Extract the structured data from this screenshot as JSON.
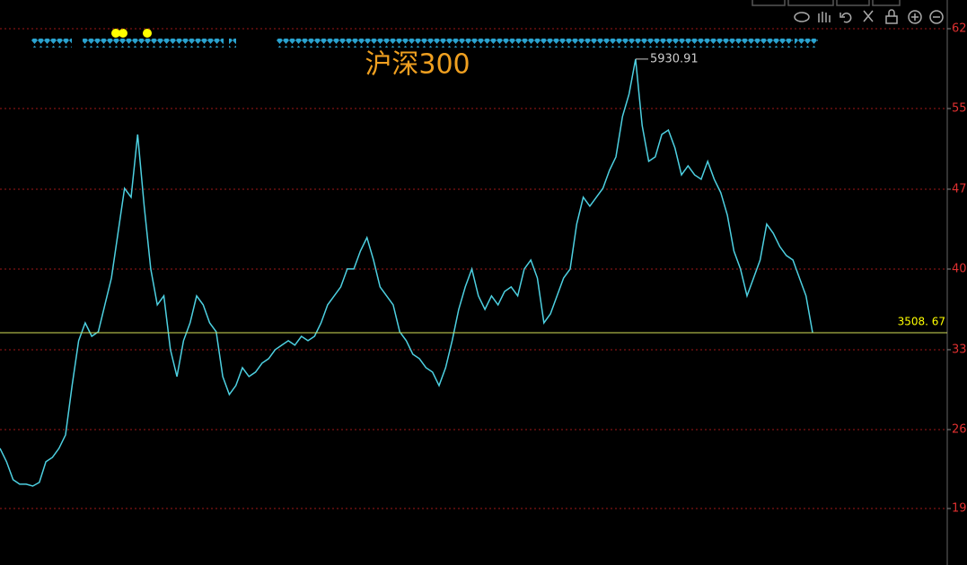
{
  "chart_data": {
    "type": "line",
    "title": "沪深300",
    "series": [
      {
        "color": "#4dd0e1",
        "values": [
          2485,
          2366,
          2207,
          2167,
          2167,
          2151,
          2183,
          2366,
          2405,
          2485,
          2604,
          3041,
          3438,
          3596,
          3477,
          3517,
          3755,
          3993,
          4390,
          4787,
          4708,
          5264,
          4629,
          4073,
          3755,
          3835,
          3358,
          3120,
          3438,
          3596,
          3835,
          3755,
          3596,
          3517,
          3120,
          2961,
          3041,
          3199,
          3120,
          3160,
          3239,
          3279,
          3358,
          3398,
          3438,
          3398,
          3477,
          3438,
          3477,
          3596,
          3755,
          3835,
          3914,
          4073,
          4073,
          4232,
          4351,
          4152,
          3914,
          3835,
          3755,
          3517,
          3438,
          3318,
          3279,
          3199,
          3160,
          3041,
          3199,
          3438,
          3715,
          3914,
          4073,
          3835,
          3715,
          3835,
          3755,
          3874,
          3914,
          3835,
          4073,
          4152,
          3993,
          3596,
          3676,
          3835,
          3993,
          4073,
          4470,
          4708,
          4629,
          4708,
          4787,
          4946,
          5065,
          5423,
          5621,
          5930.91,
          5343,
          5026,
          5065,
          5264,
          5303,
          5145,
          4906,
          4986,
          4906,
          4867,
          5026,
          4867,
          4748,
          4549,
          4232,
          4073,
          3835,
          3993,
          4152,
          4470,
          4390,
          4271,
          4192,
          4152,
          3993,
          3835,
          3509
        ]
      }
    ],
    "peak_label": "5930.91",
    "last_price": 3508.67,
    "last_price_label": "3508. 67",
    "ylim": [
      1452,
      6454
    ],
    "yticks": [
      {
        "value": 1952,
        "label": "19"
      },
      {
        "value": 2651,
        "label": "26"
      },
      {
        "value": 3358,
        "label": "33"
      },
      {
        "value": 4072,
        "label": "40"
      },
      {
        "value": 4779,
        "label": "47"
      },
      {
        "value": 5493,
        "label": "55"
      },
      {
        "value": 6200,
        "label": "62"
      }
    ],
    "grid": true
  }
}
